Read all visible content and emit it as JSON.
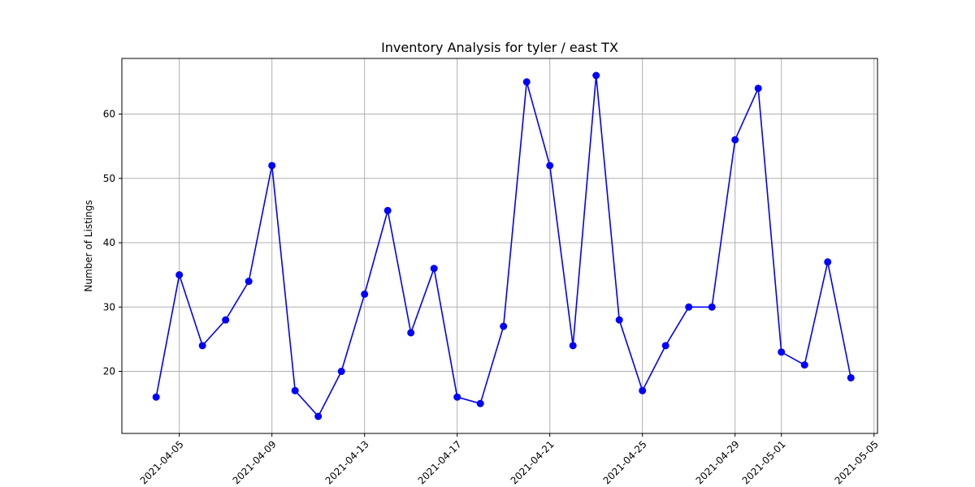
{
  "chart_data": {
    "type": "line",
    "title": "Inventory Analysis for tyler / east TX",
    "xlabel": "",
    "ylabel": "Number of Listings",
    "grid": true,
    "marker": "circle",
    "line_color": "#0000ff",
    "x_ticks": [
      "2021-04-05",
      "2021-04-09",
      "2021-04-13",
      "2021-04-17",
      "2021-04-21",
      "2021-04-25",
      "2021-04-29",
      "2021-05-01",
      "2021-05-05"
    ],
    "y_ticks": [
      20,
      30,
      40,
      50,
      60
    ],
    "xlim": [
      "2021-04-02",
      "2021-05-05"
    ],
    "ylim": [
      10.35,
      68.65
    ],
    "series": [
      {
        "x": [
          "2021-04-04",
          "2021-04-05",
          "2021-04-06",
          "2021-04-07",
          "2021-04-08",
          "2021-04-09",
          "2021-04-10",
          "2021-04-11",
          "2021-04-12",
          "2021-04-13",
          "2021-04-14",
          "2021-04-15",
          "2021-04-16",
          "2021-04-17",
          "2021-04-18",
          "2021-04-19",
          "2021-04-20",
          "2021-04-21",
          "2021-04-22",
          "2021-04-23",
          "2021-04-24",
          "2021-04-25",
          "2021-04-26",
          "2021-04-27",
          "2021-04-28",
          "2021-04-29",
          "2021-04-30",
          "2021-05-01",
          "2021-05-02",
          "2021-05-03",
          "2021-05-04"
        ],
        "values": [
          16,
          35,
          24,
          28,
          34,
          52,
          17,
          13,
          20,
          32,
          45,
          26,
          36,
          16,
          15,
          27,
          65,
          52,
          24,
          66,
          28,
          17,
          24,
          30,
          30,
          56,
          64,
          23,
          21,
          37,
          19
        ]
      }
    ]
  }
}
